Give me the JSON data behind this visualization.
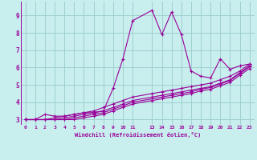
{
  "title": "",
  "xlabel": "Windchill (Refroidissement éolien,°C)",
  "ylabel": "",
  "background_color": "#c8eeee",
  "line_color": "#990099",
  "grid_color": "#a0d0d0",
  "xlim": [
    -0.5,
    23.5
  ],
  "ylim": [
    2.7,
    9.8
  ],
  "xticks": [
    0,
    1,
    2,
    3,
    4,
    5,
    6,
    7,
    8,
    9,
    10,
    11,
    13,
    14,
    15,
    16,
    17,
    18,
    19,
    20,
    21,
    22,
    23
  ],
  "yticks": [
    3,
    4,
    5,
    6,
    7,
    8,
    9
  ],
  "lines": [
    {
      "x": [
        0,
        1,
        2,
        3,
        4,
        5,
        6,
        7,
        8,
        9,
        10,
        11,
        13,
        14,
        15,
        16,
        17,
        18,
        19,
        20,
        21,
        22,
        23
      ],
      "y": [
        3.0,
        3.0,
        3.3,
        3.2,
        3.2,
        3.3,
        3.4,
        3.4,
        3.5,
        4.8,
        6.5,
        8.7,
        9.3,
        7.9,
        9.2,
        7.9,
        5.8,
        5.5,
        5.4,
        6.5,
        5.9,
        6.1,
        6.2
      ]
    },
    {
      "x": [
        0,
        1,
        2,
        3,
        4,
        5,
        6,
        7,
        8,
        9,
        10,
        11,
        13,
        14,
        15,
        16,
        17,
        18,
        19,
        20,
        21,
        22,
        23
      ],
      "y": [
        3.0,
        3.0,
        3.0,
        3.1,
        3.2,
        3.3,
        3.4,
        3.5,
        3.7,
        3.9,
        4.1,
        4.3,
        4.5,
        4.6,
        4.7,
        4.8,
        4.9,
        5.0,
        5.1,
        5.3,
        5.5,
        5.8,
        6.2
      ]
    },
    {
      "x": [
        0,
        1,
        2,
        3,
        4,
        5,
        6,
        7,
        8,
        9,
        10,
        11,
        13,
        14,
        15,
        16,
        17,
        18,
        19,
        20,
        21,
        22,
        23
      ],
      "y": [
        3.0,
        3.0,
        3.0,
        3.0,
        3.1,
        3.2,
        3.3,
        3.4,
        3.5,
        3.7,
        3.9,
        4.1,
        4.3,
        4.4,
        4.5,
        4.6,
        4.7,
        4.8,
        4.9,
        5.1,
        5.3,
        5.7,
        6.1
      ]
    },
    {
      "x": [
        0,
        1,
        2,
        3,
        4,
        5,
        6,
        7,
        8,
        9,
        10,
        11,
        13,
        14,
        15,
        16,
        17,
        18,
        19,
        20,
        21,
        22,
        23
      ],
      "y": [
        3.0,
        3.0,
        3.0,
        3.0,
        3.0,
        3.1,
        3.2,
        3.3,
        3.4,
        3.6,
        3.8,
        4.0,
        4.2,
        4.3,
        4.4,
        4.5,
        4.6,
        4.75,
        4.85,
        5.05,
        5.25,
        5.65,
        6.05
      ]
    },
    {
      "x": [
        0,
        1,
        2,
        3,
        4,
        5,
        6,
        7,
        8,
        9,
        10,
        11,
        13,
        14,
        15,
        16,
        17,
        18,
        19,
        20,
        21,
        22,
        23
      ],
      "y": [
        3.0,
        3.0,
        3.0,
        3.0,
        3.0,
        3.0,
        3.1,
        3.2,
        3.3,
        3.5,
        3.7,
        3.9,
        4.1,
        4.2,
        4.3,
        4.4,
        4.5,
        4.65,
        4.75,
        4.95,
        5.15,
        5.55,
        5.95
      ]
    }
  ]
}
